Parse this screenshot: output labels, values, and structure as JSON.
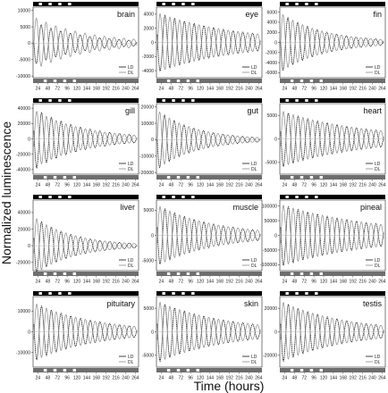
{
  "figure": {
    "ylabel": "Normalized luminescence",
    "xlabel": "Time (hours)"
  },
  "chart_data": [
    {
      "type": "line",
      "title": "brain",
      "x_ticks": [
        24,
        48,
        72,
        96,
        120,
        144,
        168,
        192,
        216,
        240,
        264
      ],
      "y_ticks": [
        -10000,
        -5000,
        0,
        5000,
        10000
      ],
      "ylim": [
        -10500,
        11000
      ],
      "period_hours": 24,
      "series": [
        {
          "name": "LD",
          "amplitude": 6500,
          "decay_per_day": 0.2,
          "phase_hours": 2
        },
        {
          "name": "DL",
          "amplitude": 8000,
          "decay_per_day": 0.18,
          "phase_hours": 14
        }
      ],
      "legend": [
        "LD",
        "DL"
      ]
    },
    {
      "type": "line",
      "title": "eye",
      "x_ticks": [
        24,
        48,
        72,
        96,
        120,
        144,
        168,
        192,
        216,
        240,
        264
      ],
      "y_ticks": [
        -4000,
        -2000,
        0,
        2000,
        4000
      ],
      "ylim": [
        -5000,
        5000
      ],
      "period_hours": 24,
      "series": [
        {
          "name": "LD",
          "amplitude": 4200,
          "decay_per_day": 0.12,
          "phase_hours": 3
        },
        {
          "name": "DL",
          "amplitude": 4200,
          "decay_per_day": 0.12,
          "phase_hours": 15
        }
      ],
      "legend": [
        "LD",
        "DL"
      ]
    },
    {
      "type": "line",
      "title": "fin",
      "x_ticks": [
        24,
        48,
        72,
        96,
        120,
        144,
        168,
        192,
        216,
        240,
        264
      ],
      "y_ticks": [
        -6000,
        -4000,
        -2000,
        0,
        2000,
        4000,
        6000
      ],
      "ylim": [
        -7000,
        7000
      ],
      "period_hours": 24,
      "series": [
        {
          "name": "LD",
          "amplitude": 5800,
          "decay_per_day": 0.22,
          "phase_hours": 2
        },
        {
          "name": "DL",
          "amplitude": 5800,
          "decay_per_day": 0.22,
          "phase_hours": 14
        }
      ],
      "legend": [
        "LD",
        "DL"
      ]
    },
    {
      "type": "line",
      "title": "gill",
      "x_ticks": [
        24,
        48,
        72,
        96,
        120,
        144,
        168,
        192,
        216,
        240,
        264
      ],
      "y_ticks": [
        -40000,
        -20000,
        0,
        20000,
        40000
      ],
      "ylim": [
        -46000,
        46000
      ],
      "period_hours": 24,
      "series": [
        {
          "name": "LD",
          "amplitude": 40000,
          "decay_per_day": 0.2,
          "phase_hours": 3
        },
        {
          "name": "DL",
          "amplitude": 38000,
          "decay_per_day": 0.2,
          "phase_hours": 15
        }
      ],
      "legend": [
        "LD",
        "DL"
      ]
    },
    {
      "type": "line",
      "title": "gut",
      "x_ticks": [
        24,
        48,
        72,
        96,
        120,
        144,
        168,
        192,
        216,
        240,
        264
      ],
      "y_ticks": [
        -20000,
        -10000,
        0,
        10000,
        20000
      ],
      "ylim": [
        -21000,
        22000
      ],
      "period_hours": 24,
      "series": [
        {
          "name": "LD",
          "amplitude": 18000,
          "decay_per_day": 0.25,
          "phase_hours": 2
        },
        {
          "name": "DL",
          "amplitude": 18000,
          "decay_per_day": 0.25,
          "phase_hours": 14
        }
      ],
      "legend": [
        "LD",
        "DL"
      ]
    },
    {
      "type": "line",
      "title": "heart",
      "x_ticks": [
        24,
        48,
        72,
        96,
        120,
        144,
        168,
        192,
        216,
        240,
        264
      ],
      "y_ticks": [
        -5000,
        0,
        5000
      ],
      "ylim": [
        -7500,
        7500
      ],
      "period_hours": 24,
      "series": [
        {
          "name": "LD",
          "amplitude": 6000,
          "decay_per_day": 0.12,
          "phase_hours": 3
        },
        {
          "name": "DL",
          "amplitude": 6000,
          "decay_per_day": 0.12,
          "phase_hours": 15
        }
      ],
      "legend": [
        "LD",
        "DL"
      ]
    },
    {
      "type": "line",
      "title": "liver",
      "x_ticks": [
        24,
        48,
        72,
        96,
        120,
        144,
        168,
        192,
        216,
        240,
        264
      ],
      "y_ticks": [
        -20000,
        0,
        20000,
        40000
      ],
      "ylim": [
        -30000,
        55000
      ],
      "period_hours": 24,
      "series": [
        {
          "name": "LD",
          "amplitude": 35000,
          "decay_per_day": 0.25,
          "phase_hours": 3
        },
        {
          "name": "DL",
          "amplitude": 35000,
          "decay_per_day": 0.25,
          "phase_hours": 15
        }
      ],
      "legend": [
        "LD",
        "DL"
      ]
    },
    {
      "type": "line",
      "title": "muscle",
      "x_ticks": [
        24,
        48,
        72,
        96,
        120,
        144,
        168,
        192,
        216,
        240,
        264
      ],
      "y_ticks": [
        -5000,
        0,
        5000
      ],
      "ylim": [
        -7000,
        7000
      ],
      "period_hours": 24,
      "series": [
        {
          "name": "LD",
          "amplitude": 6000,
          "decay_per_day": 0.17,
          "phase_hours": 3
        },
        {
          "name": "DL",
          "amplitude": 6000,
          "decay_per_day": 0.17,
          "phase_hours": 15
        }
      ],
      "legend": [
        "LD",
        "DL"
      ]
    },
    {
      "type": "line",
      "title": "pineal",
      "x_ticks": [
        24,
        48,
        72,
        96,
        120,
        144,
        168,
        192,
        216,
        240,
        264
      ],
      "y_ticks": [
        -100000,
        -50000,
        0,
        50000,
        100000
      ],
      "ylim": [
        -120000,
        120000
      ],
      "period_hours": 24,
      "series": [
        {
          "name": "LD",
          "amplitude": 105000,
          "decay_per_day": 0.1,
          "phase_hours": 3
        },
        {
          "name": "DL",
          "amplitude": 105000,
          "decay_per_day": 0.1,
          "phase_hours": 15
        }
      ],
      "legend": [
        "LD",
        "DL"
      ]
    },
    {
      "type": "line",
      "title": "pituitary",
      "x_ticks": [
        24,
        48,
        72,
        96,
        120,
        144,
        168,
        192,
        216,
        240,
        264
      ],
      "y_ticks": [
        -10000,
        0,
        10000
      ],
      "ylim": [
        -17000,
        17000
      ],
      "period_hours": 24,
      "series": [
        {
          "name": "LD",
          "amplitude": 14000,
          "decay_per_day": 0.16,
          "phase_hours": 3
        },
        {
          "name": "DL",
          "amplitude": 14000,
          "decay_per_day": 0.16,
          "phase_hours": 15
        }
      ],
      "legend": [
        "LD",
        "DL"
      ]
    },
    {
      "type": "line",
      "title": "skin",
      "x_ticks": [
        24,
        48,
        72,
        96,
        120,
        144,
        168,
        192,
        216,
        240,
        264
      ],
      "y_ticks": [
        -5000,
        0,
        5000
      ],
      "ylim": [
        -7500,
        7500
      ],
      "period_hours": 24,
      "series": [
        {
          "name": "LD",
          "amplitude": 6500,
          "decay_per_day": 0.14,
          "phase_hours": 3
        },
        {
          "name": "DL",
          "amplitude": 6500,
          "decay_per_day": 0.14,
          "phase_hours": 15
        }
      ],
      "legend": [
        "LD",
        "DL"
      ]
    },
    {
      "type": "line",
      "title": "testis",
      "x_ticks": [
        24,
        48,
        72,
        96,
        120,
        144,
        168,
        192,
        216,
        240,
        264
      ],
      "y_ticks": [
        -20000,
        0,
        20000
      ],
      "ylim": [
        -30000,
        30000
      ],
      "period_hours": 24,
      "series": [
        {
          "name": "LD",
          "amplitude": 26000,
          "decay_per_day": 0.15,
          "phase_hours": 3
        },
        {
          "name": "DL",
          "amplitude": 26000,
          "decay_per_day": 0.15,
          "phase_hours": 15
        }
      ],
      "legend": [
        "LD",
        "DL"
      ]
    }
  ],
  "style": {
    "ld_color": "#111111",
    "dl_color": "#8a8a8a",
    "zero_color": "#bbbbbb",
    "dark_bar": "#000000",
    "gray_bar": "#6e6e6e"
  }
}
